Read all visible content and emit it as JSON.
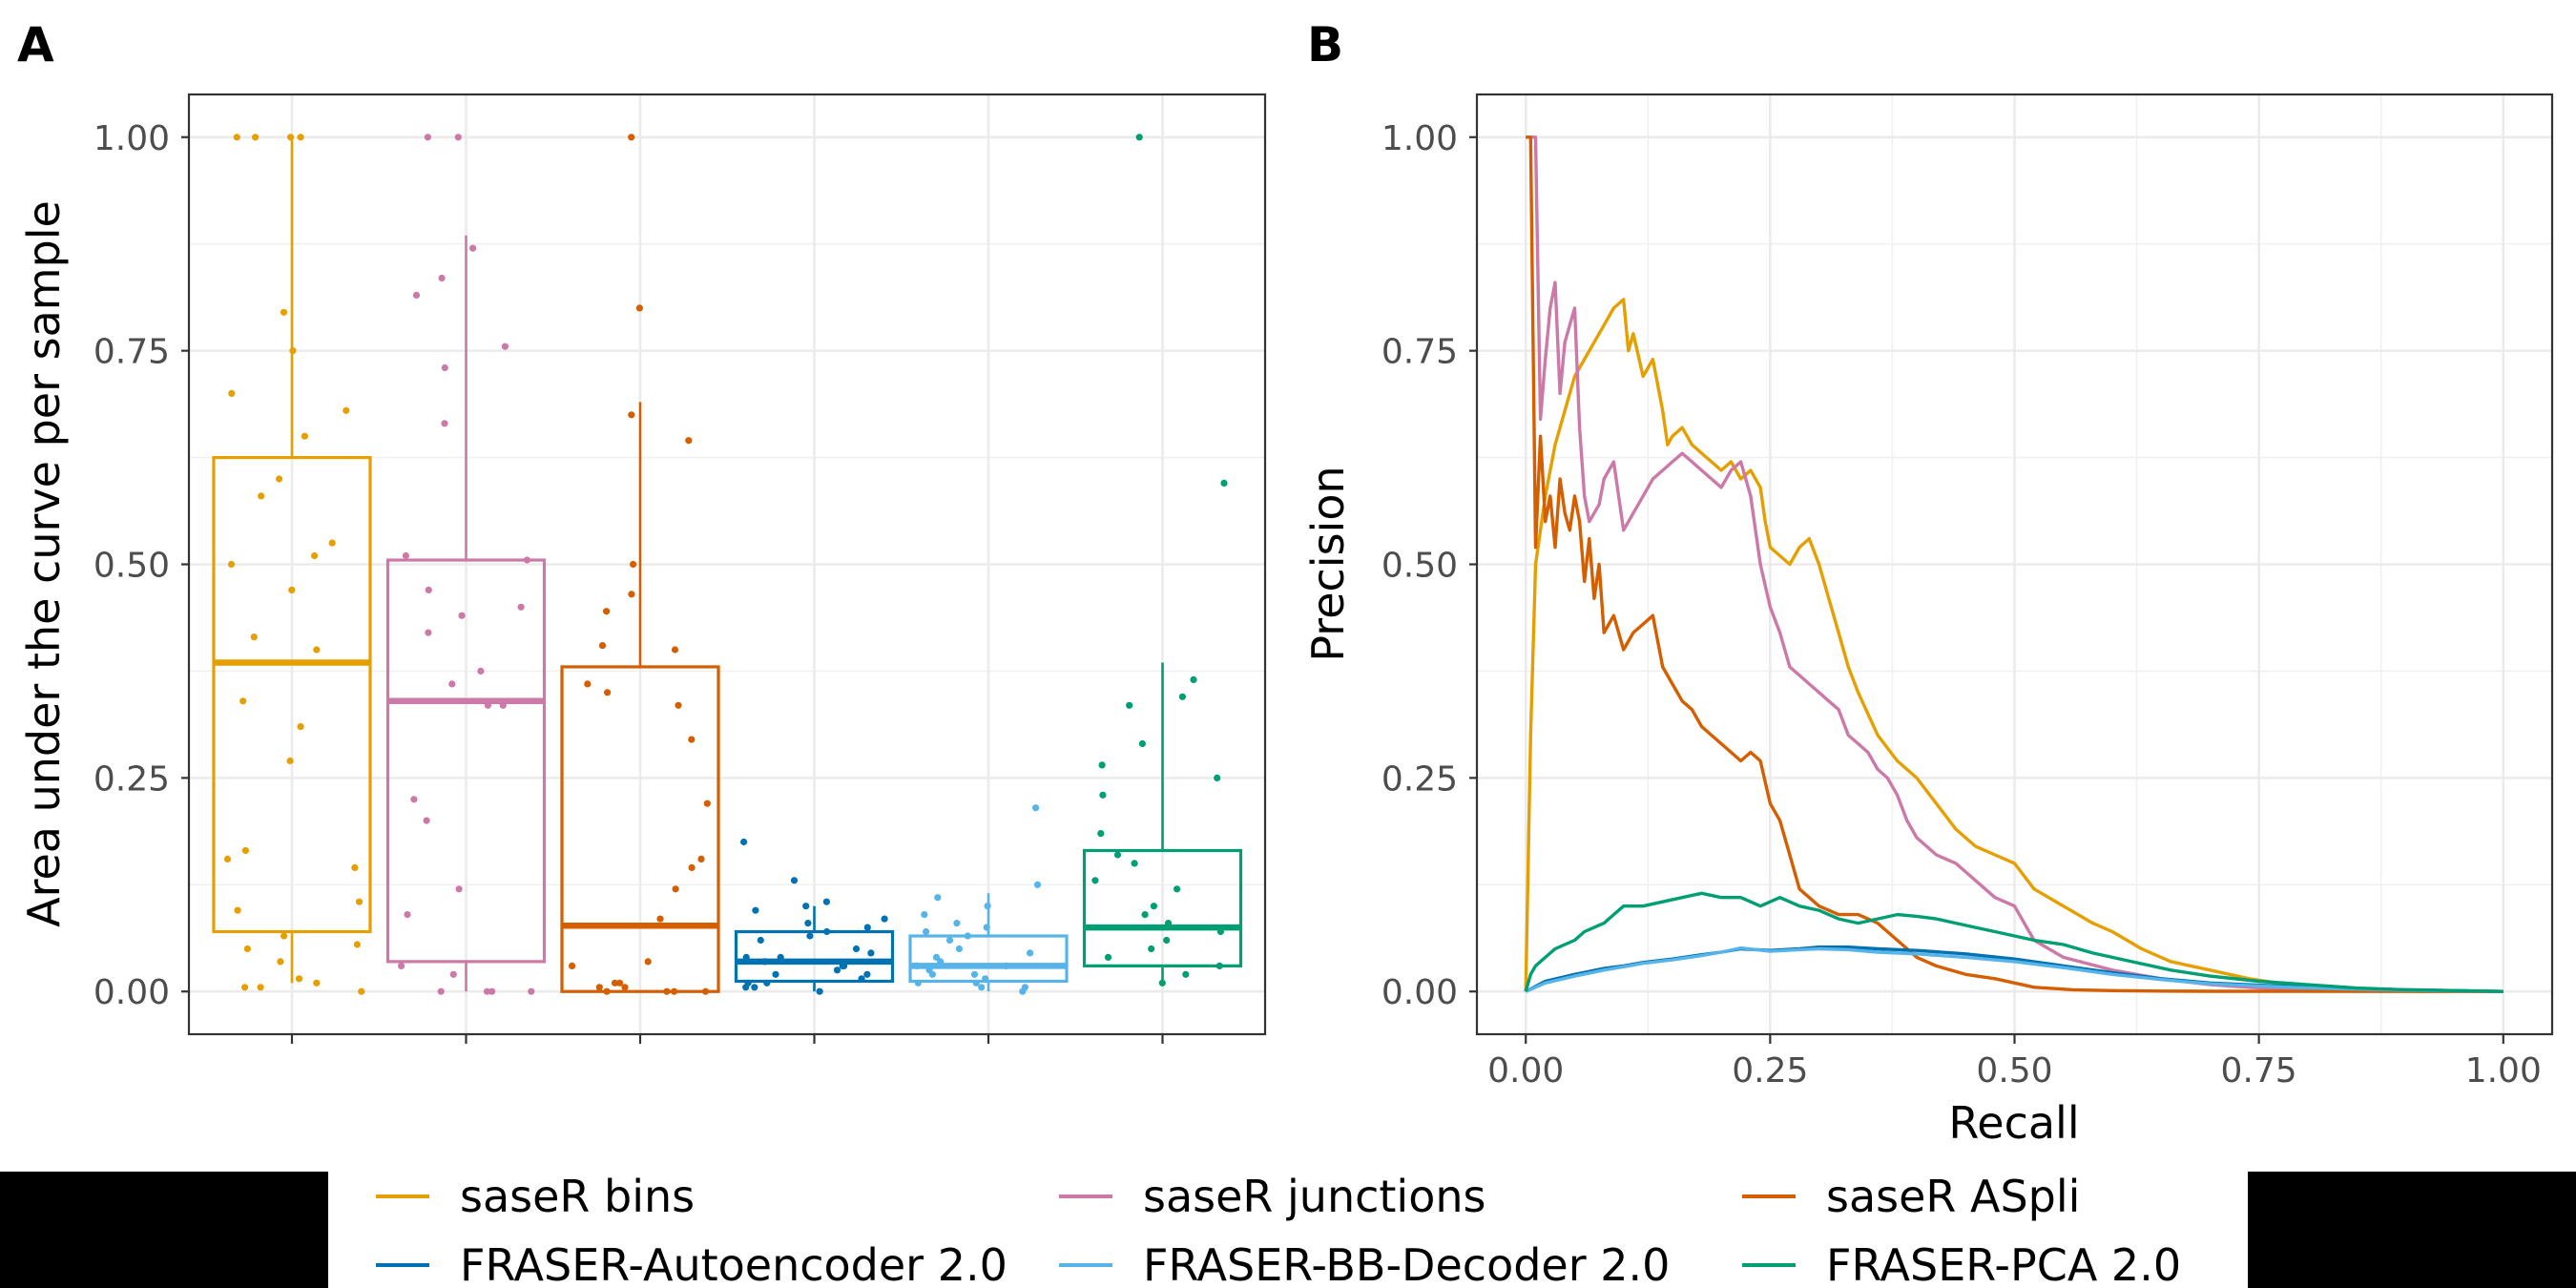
{
  "panels": {
    "a_label": "A",
    "b_label": "B"
  },
  "colors": {
    "saseR bins": "#E69F00",
    "saseR junctions": "#CC79A7",
    "saseR ASpli": "#D55E00",
    "FRASER-Autoencoder 2.0": "#0072B2",
    "FRASER-BB-Decoder 2.0": "#56B4E9",
    "FRASER-PCA 2.0": "#009E73"
  },
  "legend": {
    "position": "bottom",
    "items": [
      "saseR bins",
      "saseR junctions",
      "saseR ASpli",
      "FRASER-Autoencoder 2.0",
      "FRASER-BB-Decoder 2.0",
      "FRASER-PCA 2.0"
    ]
  },
  "chart_data": [
    {
      "type": "boxplot",
      "panel": "A",
      "ylabel": "Area under the curve per sample",
      "xlabel": "",
      "ylim": [
        -0.05,
        1.05
      ],
      "yticks": [
        "0.00",
        "0.25",
        "0.50",
        "0.75",
        "1.00"
      ],
      "ytick_values": [
        0,
        0.25,
        0.5,
        0.75,
        1.0
      ],
      "grid": true,
      "boxes": [
        {
          "method": "saseR bins",
          "min": 0.01,
          "q1": 0.07,
          "median": 0.385,
          "q3": 0.625,
          "max": 1.0
        },
        {
          "method": "saseR junctions",
          "min": 0.0,
          "q1": 0.035,
          "median": 0.34,
          "q3": 0.505,
          "max": 0.885
        },
        {
          "method": "saseR ASpli",
          "min": 0.0,
          "q1": 0.0,
          "median": 0.077,
          "q3": 0.38,
          "max": 0.69
        },
        {
          "method": "FRASER-Autoencoder 2.0",
          "min": 0.0,
          "q1": 0.012,
          "median": 0.035,
          "q3": 0.07,
          "max": 0.1
        },
        {
          "method": "FRASER-BB-Decoder 2.0",
          "min": 0.0,
          "q1": 0.012,
          "median": 0.03,
          "q3": 0.065,
          "max": 0.115
        },
        {
          "method": "FRASER-PCA 2.0",
          "min": 0.01,
          "q1": 0.03,
          "median": 0.075,
          "q3": 0.165,
          "max": 0.385
        }
      ],
      "points": [
        [
          1.0,
          1.0,
          1.0,
          1.0,
          0.795,
          0.75,
          0.7,
          0.68,
          0.65,
          0.6,
          0.58,
          0.525,
          0.51,
          0.5,
          0.47,
          0.415,
          0.4,
          0.34,
          0.31,
          0.27,
          0.165,
          0.155,
          0.145,
          0.105,
          0.095,
          0.065,
          0.055,
          0.05,
          0.035,
          0.015,
          0.01,
          0.005,
          0.005,
          0.0
        ],
        [
          1.0,
          1.0,
          0.87,
          0.835,
          0.815,
          0.755,
          0.73,
          0.665,
          0.51,
          0.505,
          0.47,
          0.45,
          0.44,
          0.42,
          0.375,
          0.36,
          0.335,
          0.335,
          0.225,
          0.2,
          0.12,
          0.09,
          0.03,
          0.02,
          0.0,
          0.0,
          0.0,
          0.0
        ],
        [
          1.0,
          0.8,
          0.675,
          0.645,
          0.5,
          0.465,
          0.445,
          0.405,
          0.4,
          0.36,
          0.35,
          0.335,
          0.295,
          0.22,
          0.155,
          0.145,
          0.12,
          0.085,
          0.035,
          0.03,
          0.01,
          0.01,
          0.005,
          0.005,
          0.0,
          0.0,
          0.0,
          0.0
        ],
        [
          0.175,
          0.13,
          0.105,
          0.1,
          0.095,
          0.085,
          0.08,
          0.075,
          0.07,
          0.065,
          0.06,
          0.05,
          0.045,
          0.04,
          0.04,
          0.035,
          0.03,
          0.03,
          0.025,
          0.02,
          0.02,
          0.015,
          0.01,
          0.01,
          0.005,
          0.005,
          0.0
        ],
        [
          0.215,
          0.125,
          0.11,
          0.1,
          0.09,
          0.08,
          0.075,
          0.07,
          0.065,
          0.06,
          0.05,
          0.045,
          0.04,
          0.035,
          0.03,
          0.03,
          0.025,
          0.02,
          0.02,
          0.015,
          0.01,
          0.01,
          0.005,
          0.005,
          0.0
        ],
        [
          1.0,
          0.595,
          0.365,
          0.345,
          0.335,
          0.29,
          0.265,
          0.25,
          0.23,
          0.185,
          0.16,
          0.15,
          0.13,
          0.12,
          0.1,
          0.09,
          0.08,
          0.07,
          0.06,
          0.05,
          0.04,
          0.03,
          0.02,
          0.01
        ]
      ]
    },
    {
      "type": "line",
      "panel": "B",
      "xlabel": "Recall",
      "ylabel": "Precision",
      "xlim": [
        -0.05,
        1.05
      ],
      "ylim": [
        -0.05,
        1.05
      ],
      "xticks": [
        "0.00",
        "0.25",
        "0.50",
        "0.75",
        "1.00"
      ],
      "xtick_values": [
        0,
        0.25,
        0.5,
        0.75,
        1.0
      ],
      "yticks": [
        "0.00",
        "0.25",
        "0.50",
        "0.75",
        "1.00"
      ],
      "ytick_values": [
        0,
        0.25,
        0.5,
        0.75,
        1.0
      ],
      "grid": true,
      "series": [
        {
          "name": "saseR bins",
          "x": [
            0.0,
            0.005,
            0.01,
            0.02,
            0.03,
            0.04,
            0.05,
            0.06,
            0.07,
            0.08,
            0.09,
            0.1,
            0.105,
            0.11,
            0.12,
            0.13,
            0.14,
            0.145,
            0.15,
            0.16,
            0.17,
            0.18,
            0.19,
            0.2,
            0.21,
            0.22,
            0.23,
            0.24,
            0.245,
            0.25,
            0.26,
            0.27,
            0.28,
            0.29,
            0.3,
            0.31,
            0.32,
            0.33,
            0.34,
            0.36,
            0.38,
            0.4,
            0.42,
            0.44,
            0.46,
            0.48,
            0.5,
            0.52,
            0.55,
            0.58,
            0.6,
            0.63,
            0.66,
            0.7,
            0.74,
            0.78,
            0.82,
            0.86,
            0.9,
            0.95,
            1.0
          ],
          "y": [
            0.0,
            0.3,
            0.5,
            0.58,
            0.64,
            0.68,
            0.72,
            0.74,
            0.76,
            0.78,
            0.8,
            0.81,
            0.75,
            0.77,
            0.72,
            0.74,
            0.68,
            0.64,
            0.65,
            0.66,
            0.64,
            0.63,
            0.62,
            0.61,
            0.62,
            0.6,
            0.61,
            0.59,
            0.55,
            0.52,
            0.51,
            0.5,
            0.52,
            0.53,
            0.5,
            0.46,
            0.42,
            0.38,
            0.35,
            0.3,
            0.27,
            0.25,
            0.22,
            0.19,
            0.17,
            0.16,
            0.15,
            0.12,
            0.1,
            0.08,
            0.07,
            0.05,
            0.035,
            0.025,
            0.015,
            0.008,
            0.004,
            0.002,
            0.001,
            0.0005,
            0.0
          ]
        },
        {
          "name": "saseR junctions",
          "x": [
            0.0,
            0.005,
            0.01,
            0.015,
            0.02,
            0.025,
            0.03,
            0.035,
            0.04,
            0.045,
            0.05,
            0.055,
            0.06,
            0.065,
            0.07,
            0.075,
            0.08,
            0.09,
            0.1,
            0.11,
            0.12,
            0.13,
            0.14,
            0.15,
            0.16,
            0.17,
            0.18,
            0.19,
            0.2,
            0.21,
            0.22,
            0.225,
            0.23,
            0.24,
            0.25,
            0.26,
            0.27,
            0.28,
            0.29,
            0.3,
            0.31,
            0.32,
            0.33,
            0.34,
            0.35,
            0.36,
            0.37,
            0.38,
            0.39,
            0.4,
            0.41,
            0.42,
            0.44,
            0.46,
            0.48,
            0.5,
            0.52,
            0.55,
            0.6,
            0.65,
            0.7,
            0.75,
            0.8,
            0.85,
            0.9,
            0.95,
            1.0
          ],
          "y": [
            1.0,
            1.0,
            1.0,
            0.67,
            0.74,
            0.8,
            0.83,
            0.7,
            0.76,
            0.78,
            0.8,
            0.66,
            0.58,
            0.55,
            0.56,
            0.57,
            0.6,
            0.62,
            0.54,
            0.56,
            0.58,
            0.6,
            0.61,
            0.62,
            0.63,
            0.62,
            0.61,
            0.6,
            0.59,
            0.61,
            0.62,
            0.6,
            0.58,
            0.5,
            0.45,
            0.42,
            0.38,
            0.37,
            0.36,
            0.35,
            0.34,
            0.33,
            0.3,
            0.29,
            0.28,
            0.26,
            0.25,
            0.23,
            0.2,
            0.18,
            0.17,
            0.16,
            0.15,
            0.13,
            0.11,
            0.1,
            0.06,
            0.04,
            0.025,
            0.015,
            0.008,
            0.004,
            0.002,
            0.001,
            0.0005,
            0.0002,
            0.0
          ]
        },
        {
          "name": "saseR ASpli",
          "x": [
            0.0,
            0.005,
            0.01,
            0.015,
            0.02,
            0.025,
            0.03,
            0.035,
            0.04,
            0.045,
            0.05,
            0.055,
            0.06,
            0.065,
            0.07,
            0.075,
            0.08,
            0.09,
            0.1,
            0.11,
            0.12,
            0.13,
            0.14,
            0.15,
            0.16,
            0.17,
            0.18,
            0.19,
            0.2,
            0.21,
            0.22,
            0.23,
            0.24,
            0.25,
            0.26,
            0.27,
            0.28,
            0.3,
            0.32,
            0.34,
            0.36,
            0.38,
            0.4,
            0.42,
            0.45,
            0.48,
            0.52,
            0.56,
            0.6,
            0.65,
            0.7,
            0.8,
            0.9,
            1.0
          ],
          "y": [
            1.0,
            1.0,
            0.52,
            0.65,
            0.55,
            0.58,
            0.52,
            0.6,
            0.56,
            0.54,
            0.58,
            0.55,
            0.48,
            0.53,
            0.46,
            0.5,
            0.42,
            0.44,
            0.4,
            0.42,
            0.43,
            0.44,
            0.38,
            0.36,
            0.34,
            0.33,
            0.31,
            0.3,
            0.29,
            0.28,
            0.27,
            0.28,
            0.27,
            0.22,
            0.2,
            0.16,
            0.12,
            0.1,
            0.09,
            0.09,
            0.08,
            0.06,
            0.04,
            0.03,
            0.02,
            0.015,
            0.005,
            0.002,
            0.001,
            0.0005,
            0.0003,
            0.0001,
            0.0,
            0.0
          ]
        },
        {
          "name": "FRASER-Autoencoder 2.0",
          "x": [
            0.0,
            0.02,
            0.05,
            0.08,
            0.1,
            0.12,
            0.15,
            0.18,
            0.2,
            0.22,
            0.25,
            0.28,
            0.3,
            0.33,
            0.36,
            0.4,
            0.45,
            0.5,
            0.55,
            0.6,
            0.65,
            0.7,
            0.8,
            0.9,
            1.0
          ],
          "y": [
            0.0,
            0.012,
            0.02,
            0.027,
            0.03,
            0.034,
            0.038,
            0.043,
            0.046,
            0.05,
            0.048,
            0.05,
            0.052,
            0.052,
            0.05,
            0.048,
            0.044,
            0.038,
            0.03,
            0.022,
            0.015,
            0.01,
            0.005,
            0.002,
            0.0
          ]
        },
        {
          "name": "FRASER-BB-Decoder 2.0",
          "x": [
            0.0,
            0.02,
            0.05,
            0.08,
            0.1,
            0.12,
            0.15,
            0.18,
            0.2,
            0.22,
            0.25,
            0.28,
            0.3,
            0.33,
            0.36,
            0.4,
            0.45,
            0.5,
            0.55,
            0.6,
            0.65,
            0.7,
            0.8,
            0.9,
            1.0
          ],
          "y": [
            0.0,
            0.01,
            0.018,
            0.025,
            0.029,
            0.033,
            0.037,
            0.042,
            0.046,
            0.051,
            0.047,
            0.049,
            0.05,
            0.049,
            0.046,
            0.044,
            0.04,
            0.035,
            0.028,
            0.02,
            0.014,
            0.009,
            0.004,
            0.0015,
            0.0
          ]
        },
        {
          "name": "FRASER-PCA 2.0",
          "x": [
            0.0,
            0.005,
            0.01,
            0.02,
            0.03,
            0.04,
            0.05,
            0.06,
            0.07,
            0.08,
            0.09,
            0.1,
            0.12,
            0.14,
            0.16,
            0.18,
            0.2,
            0.22,
            0.24,
            0.26,
            0.28,
            0.3,
            0.32,
            0.34,
            0.36,
            0.38,
            0.4,
            0.42,
            0.44,
            0.46,
            0.48,
            0.5,
            0.52,
            0.55,
            0.58,
            0.62,
            0.66,
            0.7,
            0.75,
            0.8,
            0.85,
            0.9,
            0.95,
            1.0
          ],
          "y": [
            0.0,
            0.02,
            0.03,
            0.04,
            0.05,
            0.055,
            0.06,
            0.07,
            0.075,
            0.08,
            0.09,
            0.1,
            0.1,
            0.105,
            0.11,
            0.115,
            0.11,
            0.11,
            0.1,
            0.11,
            0.1,
            0.095,
            0.085,
            0.08,
            0.085,
            0.09,
            0.088,
            0.085,
            0.08,
            0.075,
            0.07,
            0.065,
            0.06,
            0.055,
            0.045,
            0.035,
            0.025,
            0.018,
            0.012,
            0.008,
            0.004,
            0.002,
            0.001,
            0.0
          ]
        }
      ]
    }
  ]
}
